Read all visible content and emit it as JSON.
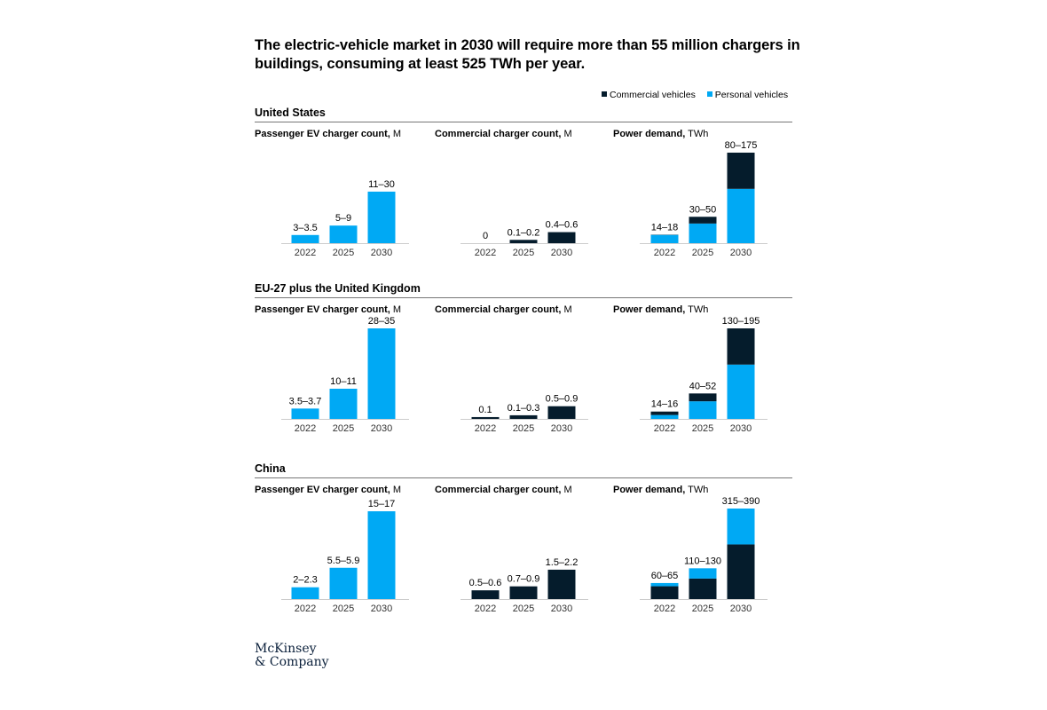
{
  "title": "The electric-vehicle market in 2030 will require more than 55 million chargers in buildings, consuming at least 525 TWh per year.",
  "legend": [
    {
      "label": "Commercial vehicles",
      "color": "#051c2c"
    },
    {
      "label": "Personal vehicles",
      "color": "#00a9f4"
    }
  ],
  "colors": {
    "personal": "#00a9f4",
    "commercial": "#051c2c",
    "axis": "#cccccc",
    "tick": "#333333"
  },
  "panel_titles": {
    "passenger": {
      "bold": "Passenger EV charger count,",
      "unit": "M"
    },
    "commercial": {
      "bold": "Commercial charger count,",
      "unit": "M"
    },
    "power": {
      "bold": "Power demand,",
      "unit": "TWh"
    }
  },
  "logo": {
    "line1": "McKinsey",
    "line2": "& Company"
  },
  "chart_data": [
    {
      "region": "United States",
      "passenger": {
        "type": "bar",
        "unit": "M",
        "categories": [
          "2022",
          "2025",
          "2030"
        ],
        "values": [
          3.25,
          7,
          20.5
        ],
        "labels": [
          "3–3.5",
          "5–9",
          "11–30"
        ],
        "ylim": [
          0,
          36
        ]
      },
      "commercial": {
        "type": "bar",
        "unit": "M",
        "categories": [
          "2022",
          "2025",
          "2030"
        ],
        "values": [
          0,
          0.15,
          0.5
        ],
        "labels": [
          "0",
          "0.1–0.2",
          "0.4–0.6"
        ],
        "ylim": [
          0,
          4.1
        ]
      },
      "power": {
        "type": "stacked_bar",
        "unit": "TWh",
        "categories": [
          "2022",
          "2025",
          "2030"
        ],
        "series": [
          {
            "name": "Personal vehicles",
            "values": [
              16,
              38,
              105
            ]
          },
          {
            "name": "Commercial vehicles",
            "values": [
              0.5,
              13,
              70
            ]
          }
        ],
        "stack_order": [
          "Personal vehicles",
          "Commercial vehicles"
        ],
        "labels": [
          "14–18",
          "30–50",
          "80–175"
        ],
        "ylim": [
          0,
          175
        ]
      }
    },
    {
      "region": "EU-27 plus the United Kingdom",
      "passenger": {
        "type": "bar",
        "unit": "M",
        "categories": [
          "2022",
          "2025",
          "2030"
        ],
        "values": [
          3.6,
          10.5,
          31.5
        ],
        "labels": [
          "3.5–3.7",
          "10–11",
          "28–35"
        ],
        "ylim": [
          0,
          31.5
        ]
      },
      "commercial": {
        "type": "bar",
        "unit": "M",
        "categories": [
          "2022",
          "2025",
          "2030"
        ],
        "values": [
          0.1,
          0.2,
          0.7
        ],
        "labels": [
          "0.1",
          "0.1–0.3",
          "0.5–0.9"
        ],
        "ylim": [
          0,
          5
        ]
      },
      "power": {
        "type": "stacked_bar",
        "unit": "TWh",
        "categories": [
          "2022",
          "2025",
          "2030"
        ],
        "series": [
          {
            "name": "Personal vehicles",
            "values": [
              8,
              36,
              111
            ]
          },
          {
            "name": "Commercial vehicles",
            "values": [
              7,
              16,
              74
            ]
          }
        ],
        "stack_order": [
          "Personal vehicles",
          "Commercial vehicles"
        ],
        "labels": [
          "14–16",
          "40–52",
          "130–195"
        ],
        "ylim": [
          0,
          185
        ]
      }
    },
    {
      "region": "China",
      "passenger": {
        "type": "bar",
        "unit": "M",
        "categories": [
          "2022",
          "2025",
          "2030"
        ],
        "values": [
          2.15,
          5.7,
          16
        ],
        "labels": [
          "2–2.3",
          "5.5–5.9",
          "15–17"
        ],
        "ylim": [
          0,
          16.5
        ]
      },
      "commercial": {
        "type": "bar",
        "unit": "M",
        "categories": [
          "2022",
          "2025",
          "2030"
        ],
        "values": [
          0.55,
          0.8,
          1.85
        ],
        "labels": [
          "0.5–0.6",
          "0.7–0.9",
          "1.5–2.2"
        ],
        "ylim": [
          0,
          5.7
        ]
      },
      "power": {
        "type": "stacked_bar",
        "unit": "TWh",
        "categories": [
          "2022",
          "2025",
          "2030"
        ],
        "series": [
          {
            "name": "Commercial vehicles",
            "values": [
              50,
              80,
              213
            ]
          },
          {
            "name": "Personal vehicles",
            "values": [
              12.5,
              40,
              140
            ]
          }
        ],
        "stack_order": [
          "Commercial vehicles",
          "Personal vehicles"
        ],
        "labels": [
          "60–65",
          "110–130",
          "315–390"
        ],
        "ylim": [
          0,
          353
        ]
      }
    }
  ]
}
